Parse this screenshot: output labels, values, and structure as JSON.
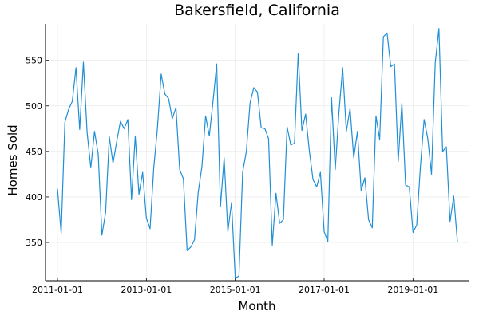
{
  "chart_data": {
    "type": "line",
    "title": "Bakersfield, California",
    "xlabel": "Month",
    "ylabel": "Homes Sold",
    "grid": true,
    "legend": "none",
    "x_start": "2011-01-01",
    "x_ticks": [
      "2011-01-01",
      "2013-01-01",
      "2015-01-01",
      "2017-01-01",
      "2019-01-01"
    ],
    "y_ticks": [
      350,
      400,
      450,
      500,
      550
    ],
    "ylim": [
      308,
      590
    ],
    "series": [
      {
        "color": "#1f8fd6",
        "values": [
          409,
          360,
          482,
          496,
          505,
          542,
          474,
          548,
          471,
          432,
          472,
          447,
          358,
          383,
          466,
          437,
          461,
          483,
          475,
          485,
          397,
          467,
          403,
          427,
          377,
          365,
          432,
          476,
          535,
          513,
          508,
          486,
          498,
          430,
          420,
          341,
          345,
          353,
          405,
          433,
          489,
          467,
          505,
          546,
          389,
          443,
          362,
          394,
          311,
          313,
          427,
          450,
          503,
          520,
          515,
          476,
          475,
          464,
          347,
          404,
          371,
          375,
          477,
          457,
          459,
          558,
          473,
          491,
          451,
          419,
          411,
          427,
          362,
          351,
          509,
          430,
          493,
          542,
          472,
          497,
          443,
          472,
          407,
          421,
          375,
          366,
          489,
          463,
          576,
          580,
          543,
          546,
          439,
          503,
          413,
          411,
          361,
          369,
          433,
          485,
          464,
          425,
          547,
          585,
          450,
          455,
          373,
          401,
          350
        ]
      }
    ]
  }
}
